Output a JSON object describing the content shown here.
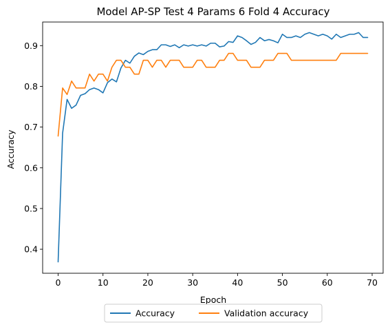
{
  "chart_data": {
    "type": "line",
    "title": "Model AP-SP Test 4 Params 6 Fold 4 Accuracy",
    "xlabel": "Epoch",
    "ylabel": "Accuracy",
    "xlim": [
      -3.45,
      72.45
    ],
    "ylim": [
      0.341,
      0.958
    ],
    "xticks": [
      0,
      10,
      20,
      30,
      40,
      50,
      60,
      70
    ],
    "yticks": [
      0.4,
      0.5,
      0.6,
      0.7,
      0.8,
      0.9
    ],
    "grid": false,
    "legend_placement": "bottom-center-outside",
    "colors": {
      "accuracy": "#1f77b4",
      "validation": "#ff7f0e"
    },
    "series": [
      {
        "name": "Accuracy",
        "values": [
          0.369,
          0.685,
          0.768,
          0.746,
          0.754,
          0.778,
          0.782,
          0.792,
          0.796,
          0.792,
          0.784,
          0.809,
          0.818,
          0.811,
          0.845,
          0.864,
          0.857,
          0.874,
          0.882,
          0.878,
          0.886,
          0.89,
          0.89,
          0.902,
          0.902,
          0.898,
          0.902,
          0.895,
          0.902,
          0.899,
          0.902,
          0.899,
          0.902,
          0.899,
          0.906,
          0.906,
          0.897,
          0.899,
          0.91,
          0.908,
          0.924,
          0.92,
          0.912,
          0.903,
          0.908,
          0.92,
          0.912,
          0.915,
          0.912,
          0.907,
          0.928,
          0.92,
          0.92,
          0.924,
          0.92,
          0.928,
          0.932,
          0.928,
          0.924,
          0.928,
          0.924,
          0.916,
          0.928,
          0.92,
          0.924,
          0.928,
          0.928,
          0.932,
          0.92,
          0.92
        ]
      },
      {
        "name": "Validation accuracy",
        "values": [
          0.678,
          0.796,
          0.78,
          0.813,
          0.796,
          0.796,
          0.796,
          0.83,
          0.813,
          0.83,
          0.83,
          0.813,
          0.847,
          0.864,
          0.864,
          0.847,
          0.847,
          0.83,
          0.83,
          0.864,
          0.864,
          0.847,
          0.864,
          0.864,
          0.847,
          0.864,
          0.864,
          0.864,
          0.847,
          0.847,
          0.847,
          0.864,
          0.864,
          0.847,
          0.847,
          0.847,
          0.864,
          0.864,
          0.881,
          0.881,
          0.864,
          0.864,
          0.864,
          0.847,
          0.847,
          0.847,
          0.864,
          0.864,
          0.864,
          0.881,
          0.881,
          0.881,
          0.864,
          0.864,
          0.864,
          0.864,
          0.864,
          0.864,
          0.864,
          0.864,
          0.864,
          0.864,
          0.864,
          0.881,
          0.881,
          0.881,
          0.881,
          0.881,
          0.881,
          0.881
        ]
      }
    ]
  }
}
